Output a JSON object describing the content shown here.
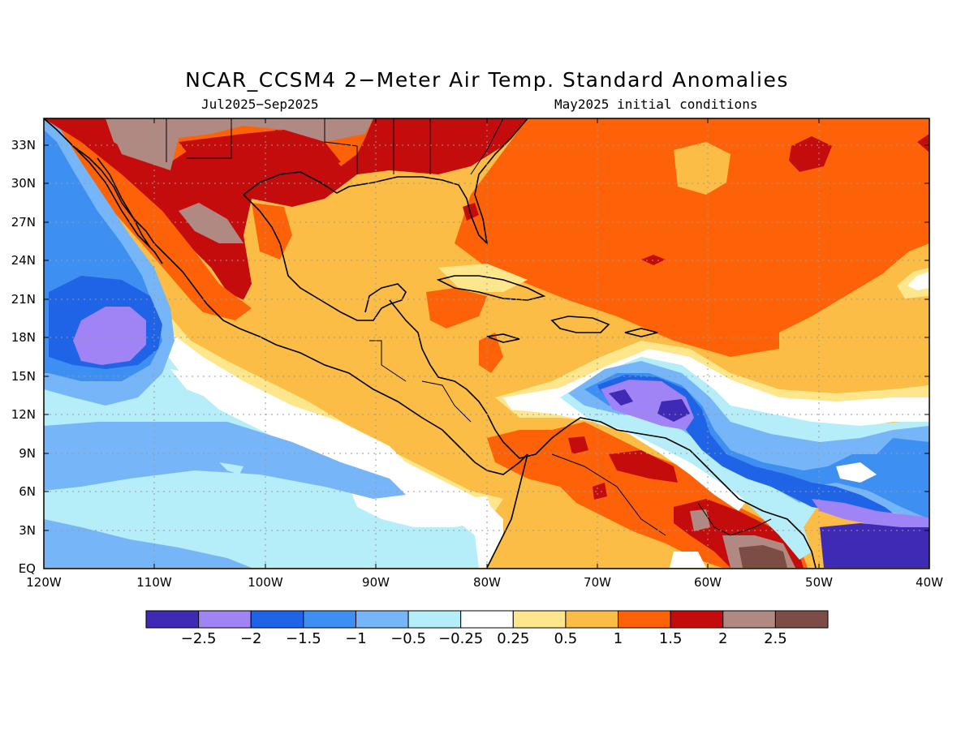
{
  "header": {
    "title": "NCAR_CCSM4 2−Meter Air Temp. Standard Anomalies",
    "period": "Jul2025−Sep2025",
    "init": "May2025 initial conditions"
  },
  "map": {
    "lon_range": [
      -120,
      -40
    ],
    "lat_range": [
      0,
      35
    ],
    "lat_ticks": [
      "33N",
      "30N",
      "27N",
      "24N",
      "21N",
      "18N",
      "15N",
      "12N",
      "9N",
      "6N",
      "3N",
      "EQ"
    ],
    "lon_ticks": [
      "120W",
      "110W",
      "100W",
      "90W",
      "80W",
      "70W",
      "60W",
      "50W",
      "40W"
    ],
    "grid": true
  },
  "colorbar": {
    "colors": [
      "#3f2ab5",
      "#a084f6",
      "#1f64e6",
      "#3d8ff1",
      "#76b6f8",
      "#b5edf9",
      "#ffffff",
      "#fee68c",
      "#fbbd45",
      "#fd6209",
      "#c40c0c",
      "#b08a82",
      "#7b4d44"
    ],
    "labels": [
      "−2.5",
      "−2",
      "−1.5",
      "−1",
      "−0.5",
      "−0.25",
      "0.25",
      "0.5",
      "1",
      "1.5",
      "2",
      "2.5"
    ]
  }
}
